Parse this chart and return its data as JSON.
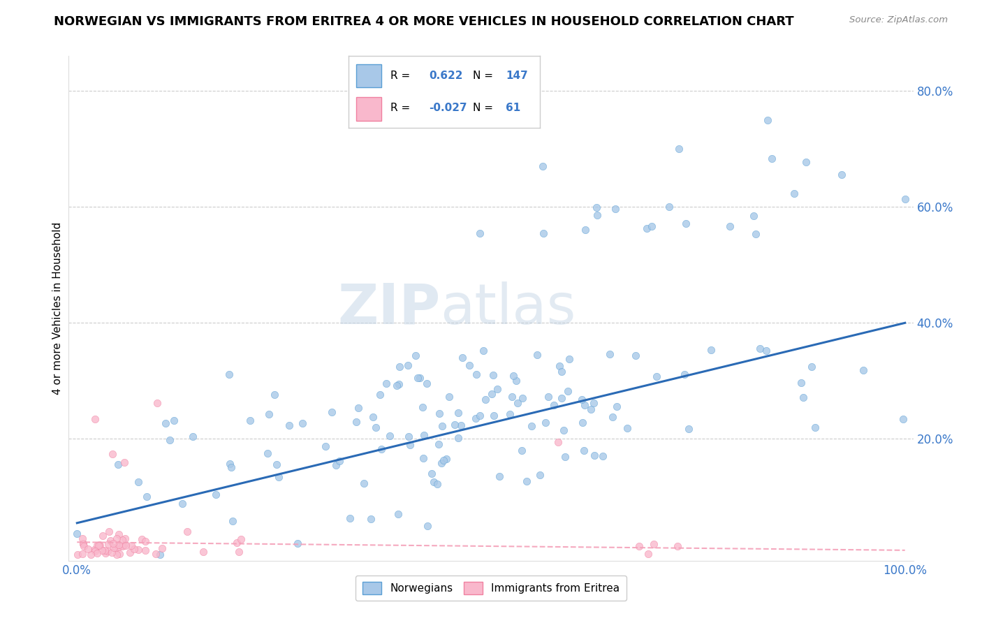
{
  "title": "NORWEGIAN VS IMMIGRANTS FROM ERITREA 4 OR MORE VEHICLES IN HOUSEHOLD CORRELATION CHART",
  "source": "Source: ZipAtlas.com",
  "ylabel": "4 or more Vehicles in Household",
  "legend_labels": [
    "Norwegians",
    "Immigrants from Eritrea"
  ],
  "r_norwegian": 0.622,
  "n_norwegian": 147,
  "r_eritrea": -0.027,
  "n_eritrea": 61,
  "norwegian_color": "#a8c8e8",
  "eritrea_color": "#f9b8cc",
  "norwegian_edge_color": "#5a9fd4",
  "eritrea_edge_color": "#f080a0",
  "norwegian_line_color": "#2a6ab5",
  "eritrea_line_color": "#f4a0b8",
  "watermark_zip": "ZIP",
  "watermark_atlas": "atlas",
  "background_color": "#ffffff",
  "title_fontsize": 13,
  "label_fontsize": 11,
  "tick_fontsize": 12,
  "stats_r_nor": "0.622",
  "stats_n_nor": "147",
  "stats_r_eri": "-0.027",
  "stats_n_eri": "61"
}
